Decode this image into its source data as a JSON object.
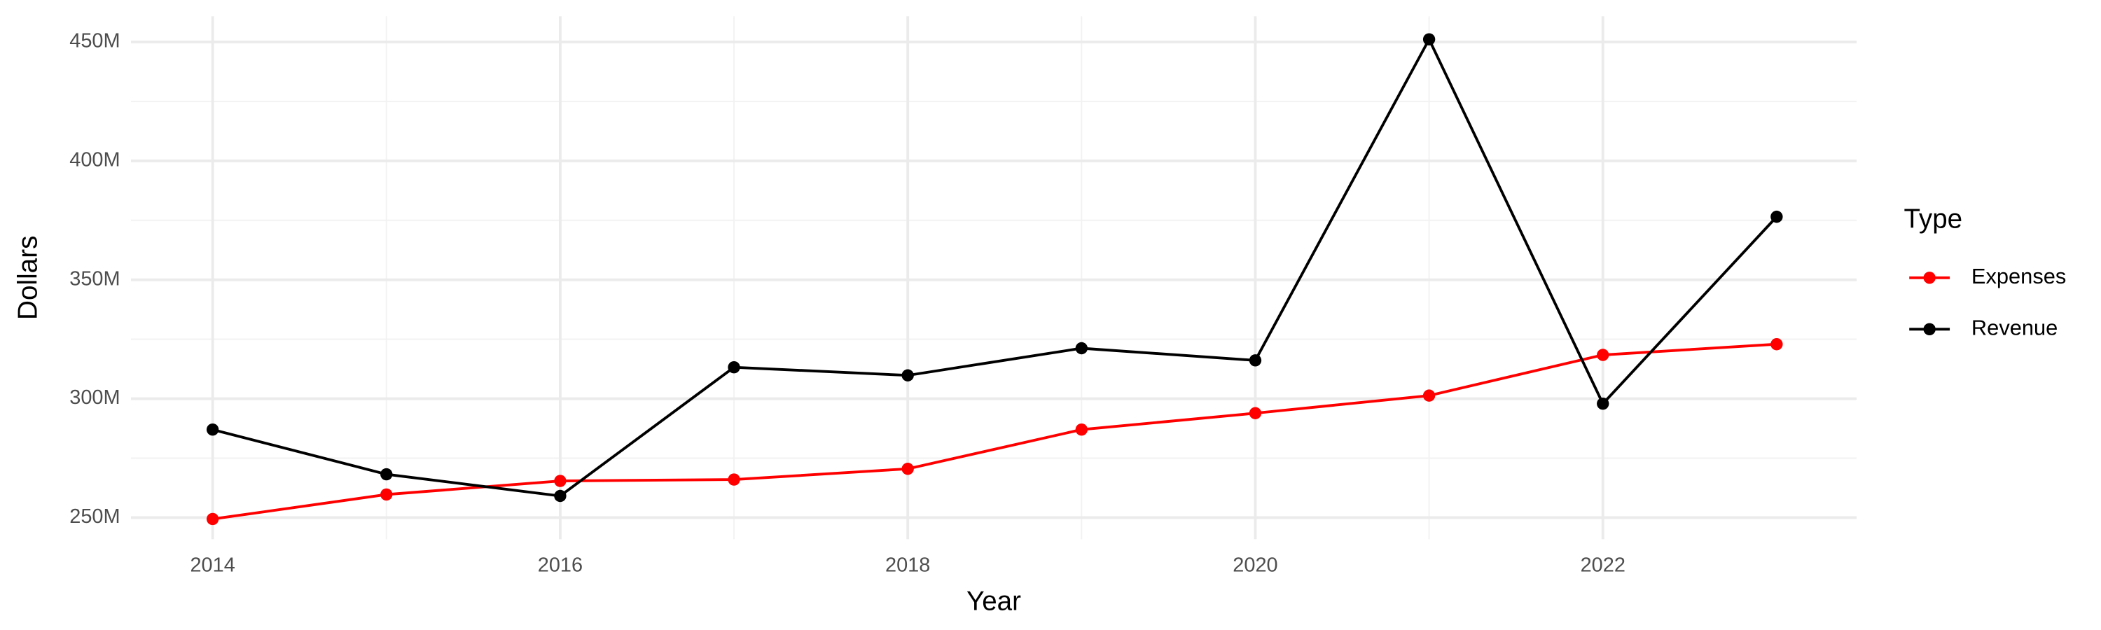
{
  "chart_data": {
    "type": "line",
    "x_label": "Year",
    "y_label": "Dollars",
    "legend_title": "Type",
    "x": [
      2014,
      2015,
      2016,
      2017,
      2018,
      2019,
      2020,
      2021,
      2022,
      2023
    ],
    "series": [
      {
        "name": "Expenses",
        "color": "#ff0000",
        "values": [
          249400000,
          259700000,
          265400000,
          266000000,
          270500000,
          287000000,
          293900000,
          301300000,
          318400000,
          322900000
        ]
      },
      {
        "name": "Revenue",
        "color": "#000000",
        "values": [
          287000000,
          268200000,
          259100000,
          313200000,
          309800000,
          321200000,
          316100000,
          451100000,
          297900000,
          376500000
        ]
      }
    ],
    "xlim": [
      2013.53,
      2023.46
    ],
    "xticks": [
      2014,
      2016,
      2018,
      2020,
      2022
    ],
    "ylim": [
      240900000,
      460800000
    ],
    "yticks": [
      {
        "value": 250000000,
        "label": "250M"
      },
      {
        "value": 300000000,
        "label": "300M"
      },
      {
        "value": 350000000,
        "label": "350M"
      },
      {
        "value": 400000000,
        "label": "400M"
      },
      {
        "value": 450000000,
        "label": "450M"
      }
    ],
    "grid": true,
    "legend_position": "right"
  }
}
